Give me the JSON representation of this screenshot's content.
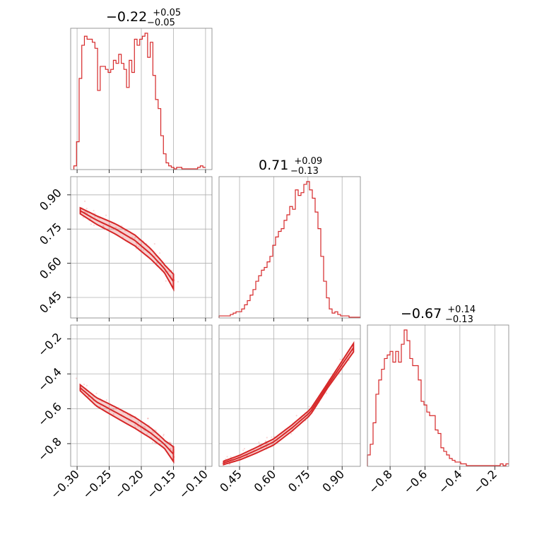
{
  "chart_data": {
    "type": "corner",
    "color": "#d62728",
    "grid": true,
    "parameters": [
      {
        "range": [
          -0.31,
          -0.09
        ],
        "ticks": [
          -0.3,
          -0.25,
          -0.2,
          -0.15,
          -0.1
        ],
        "tick_labels": [
          "−0.30",
          "−0.25",
          "−0.20",
          "−0.15",
          "−0.10"
        ]
      },
      {
        "range": [
          0.36,
          0.98
        ],
        "ticks": [
          0.45,
          0.6,
          0.75,
          0.9
        ],
        "tick_labels": [
          "0.45",
          "0.60",
          "0.75",
          "0.90"
        ]
      },
      {
        "range": [
          -0.93,
          -0.12
        ],
        "ticks": [
          -0.8,
          -0.6,
          -0.4,
          -0.2
        ],
        "tick_labels": [
          "−0.8",
          "−0.6",
          "−0.4",
          "−0.2"
        ]
      }
    ],
    "marginal_titles": [
      {
        "median": "−0.22",
        "plus": "+0.05",
        "minus": "−0.05"
      },
      {
        "median": "0.71",
        "plus": "+0.09",
        "minus": "−0.13"
      },
      {
        "median": "−0.67",
        "plus": "+0.14",
        "minus": "−0.13"
      }
    ],
    "histograms": [
      {
        "edges": [
          -0.305,
          -0.1
        ],
        "counts": [
          2,
          18,
          60,
          82,
          88,
          86,
          86,
          84,
          80,
          52,
          68,
          68,
          66,
          64,
          66,
          72,
          70,
          76,
          70,
          66,
          54,
          72,
          64,
          86,
          82,
          86,
          88,
          90,
          74,
          84,
          62,
          46,
          40,
          22,
          10,
          4,
          2,
          1,
          0,
          1,
          1,
          0,
          0,
          0,
          0,
          0,
          0,
          1,
          2,
          1
        ]
      },
      {
        "edges": [
          0.36,
          0.98
        ],
        "counts": [
          1,
          1,
          1,
          1,
          2,
          3,
          4,
          4,
          6,
          9,
          12,
          16,
          20,
          26,
          30,
          34,
          36,
          40,
          44,
          52,
          58,
          62,
          64,
          70,
          74,
          80,
          78,
          92,
          88,
          90,
          96,
          98,
          92,
          86,
          76,
          64,
          44,
          26,
          14,
          6,
          3,
          4,
          2,
          1,
          1,
          1,
          0,
          0,
          0,
          0
        ]
      },
      {
        "edges": [
          -0.93,
          -0.12
        ],
        "counts": [
          6,
          12,
          24,
          40,
          48,
          54,
          60,
          62,
          64,
          58,
          64,
          58,
          68,
          76,
          70,
          60,
          56,
          56,
          48,
          36,
          34,
          30,
          28,
          28,
          20,
          18,
          10,
          8,
          6,
          4,
          3,
          2,
          2,
          1,
          1,
          0,
          0,
          0,
          0,
          0,
          0,
          0,
          0,
          0,
          0,
          0,
          0,
          1,
          0,
          1
        ]
      }
    ],
    "ridges": {
      "p1_vs_p0": {
        "x": [
          -0.295,
          -0.27,
          -0.24,
          -0.21,
          -0.185,
          -0.165,
          -0.15
        ],
        "y": [
          0.83,
          0.79,
          0.75,
          0.7,
          0.64,
          0.58,
          0.52
        ]
      },
      "p2_vs_p0": {
        "x": [
          -0.295,
          -0.27,
          -0.24,
          -0.21,
          -0.185,
          -0.165,
          -0.15
        ],
        "y": [
          -0.48,
          -0.56,
          -0.62,
          -0.68,
          -0.74,
          -0.8,
          -0.86
        ]
      },
      "p2_vs_p1": {
        "x": [
          0.38,
          0.45,
          0.52,
          0.6,
          0.68,
          0.76,
          0.84,
          0.95
        ],
        "y": [
          -0.91,
          -0.88,
          -0.84,
          -0.79,
          -0.71,
          -0.62,
          -0.46,
          -0.25
        ]
      }
    }
  }
}
